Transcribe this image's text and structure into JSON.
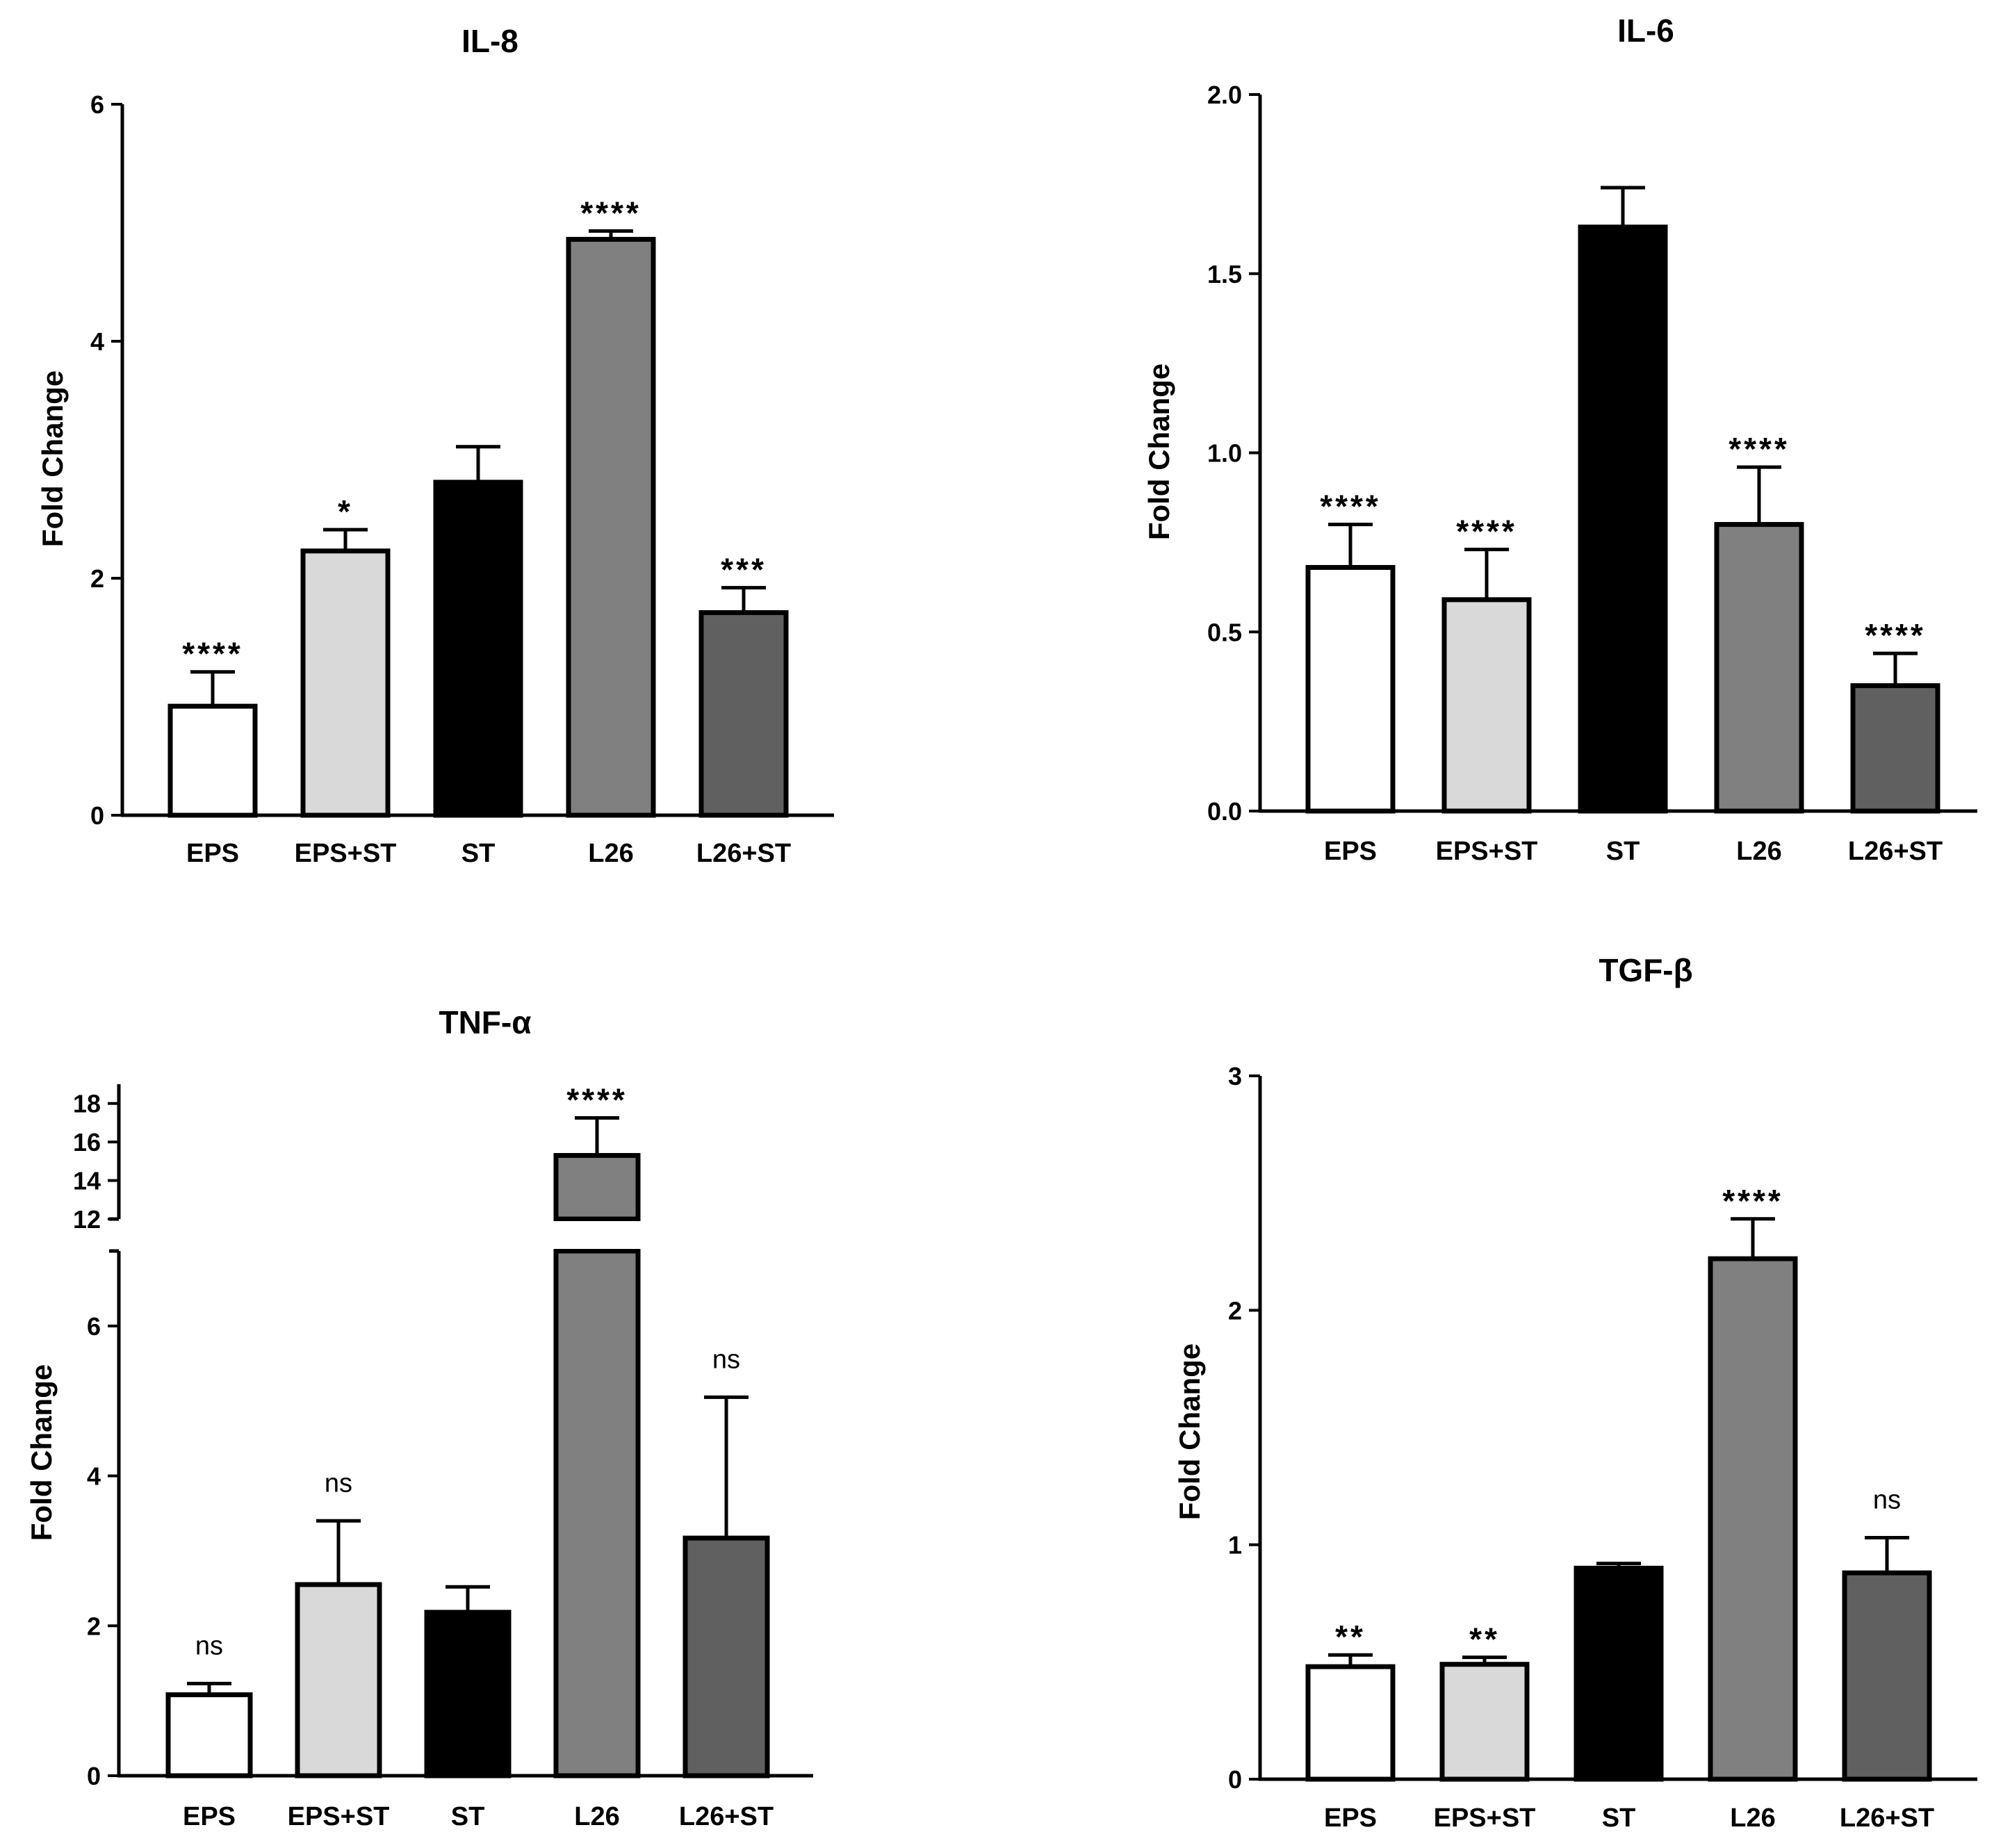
{
  "chart_data": [
    {
      "type": "bar",
      "title": "IL-8",
      "ylabel": "Fold Change",
      "xlabel": "",
      "ylim": [
        0,
        6
      ],
      "yticks": [
        0,
        2,
        4,
        6
      ],
      "categories": [
        "EPS",
        "EPS+ST",
        "ST",
        "L26",
        "L26+ST"
      ],
      "values": [
        0.92,
        2.23,
        2.81,
        4.86,
        1.71
      ],
      "errors": [
        0.29,
        0.18,
        0.3,
        0.07,
        0.21
      ],
      "significance": [
        "****",
        "*",
        "",
        "****",
        "***"
      ],
      "colors": [
        "#ffffff",
        "#d9d9d9",
        "#000000",
        "#808080",
        "#606060"
      ]
    },
    {
      "type": "bar",
      "title": "IL-6",
      "ylabel": "Fold Change",
      "xlabel": "",
      "ylim": [
        0,
        2.0
      ],
      "yticks": [
        "0.0",
        "0.5",
        "1.0",
        "1.5",
        "2.0"
      ],
      "categories": [
        "EPS",
        "EPS+ST",
        "ST",
        "L26",
        "L26+ST"
      ],
      "values": [
        0.68,
        0.59,
        1.63,
        0.8,
        0.35
      ],
      "errors": [
        0.12,
        0.14,
        0.11,
        0.16,
        0.09
      ],
      "significance": [
        "****",
        "****",
        "",
        "****",
        "****"
      ],
      "colors": [
        "#ffffff",
        "#d9d9d9",
        "#000000",
        "#808080",
        "#606060"
      ]
    },
    {
      "type": "bar",
      "title": "TNF-α",
      "ylabel": "Fold Change",
      "xlabel": "",
      "ylim_lower": [
        0,
        7
      ],
      "ylim_upper": [
        12,
        19
      ],
      "yticks_lower": [
        0,
        2,
        4,
        6
      ],
      "yticks_upper": [
        12,
        14,
        16,
        18
      ],
      "axis_break": true,
      "categories": [
        "EPS",
        "EPS+ST",
        "ST",
        "L26",
        "L26+ST"
      ],
      "values": [
        1.08,
        2.55,
        2.18,
        15.3,
        3.17
      ],
      "errors": [
        0.15,
        0.85,
        0.34,
        1.95,
        1.88
      ],
      "significance": [
        "ns",
        "ns",
        "",
        "****",
        "ns"
      ],
      "colors": [
        "#ffffff",
        "#d9d9d9",
        "#000000",
        "#808080",
        "#606060"
      ]
    },
    {
      "type": "bar",
      "title": "TGF-β",
      "ylabel": "Fold Change",
      "xlabel": "",
      "ylim": [
        0,
        3
      ],
      "yticks": [
        0,
        1,
        2,
        3
      ],
      "categories": [
        "EPS",
        "EPS+ST",
        "ST",
        "L26",
        "L26+ST"
      ],
      "values": [
        0.48,
        0.49,
        0.9,
        2.22,
        0.88
      ],
      "errors": [
        0.05,
        0.03,
        0.02,
        0.17,
        0.15
      ],
      "significance": [
        "**",
        "**",
        "",
        "****",
        "ns"
      ],
      "colors": [
        "#ffffff",
        "#d9d9d9",
        "#000000",
        "#808080",
        "#606060"
      ]
    }
  ]
}
